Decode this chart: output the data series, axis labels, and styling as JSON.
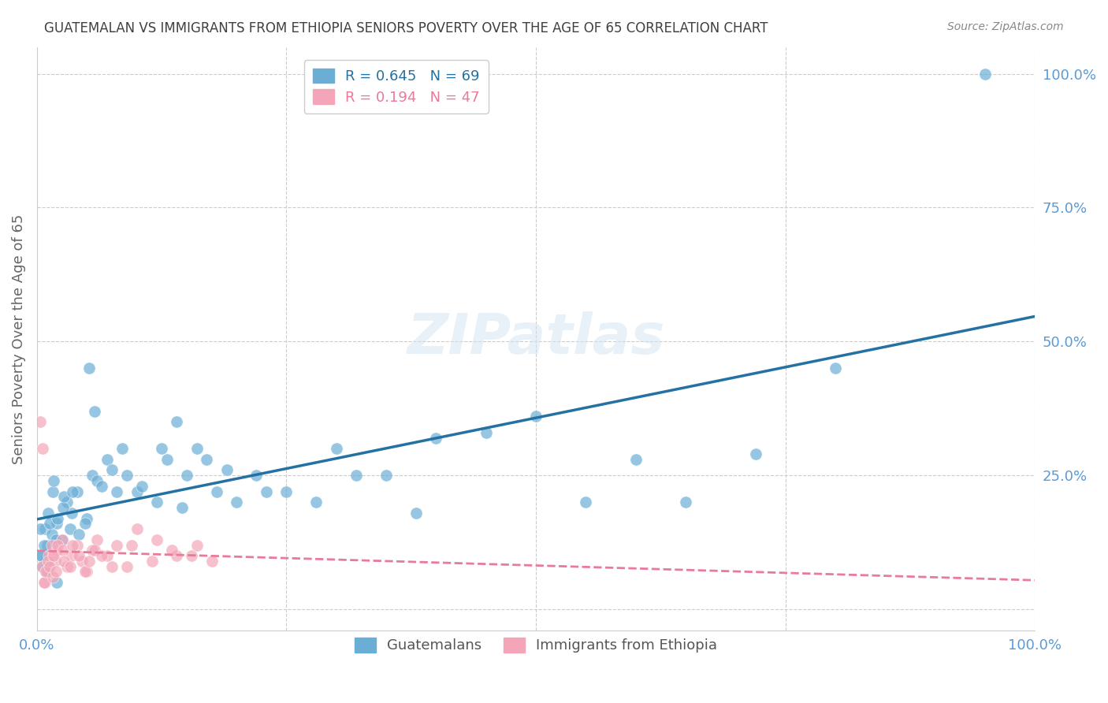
{
  "title": "GUATEMALAN VS IMMIGRANTS FROM ETHIOPIA SENIORS POVERTY OVER THE AGE OF 65 CORRELATION CHART",
  "source": "Source: ZipAtlas.com",
  "xlabel": "",
  "ylabel": "Seniors Poverty Over the Age of 65",
  "watermark": "ZIPatlas",
  "blue_R": 0.645,
  "blue_N": 69,
  "pink_R": 0.194,
  "pink_N": 47,
  "blue_color": "#6aaed6",
  "pink_color": "#f4a6b8",
  "blue_line_color": "#2471a3",
  "pink_line_color": "#e87a9a",
  "axis_label_color": "#5b9bd5",
  "title_color": "#404040",
  "grid_color": "#cccccc",
  "blue_scatter": {
    "x": [
      0.02,
      0.01,
      0.005,
      0.01,
      0.008,
      0.015,
      0.02,
      0.025,
      0.03,
      0.035,
      0.04,
      0.05,
      0.055,
      0.06,
      0.065,
      0.07,
      0.08,
      0.085,
      0.09,
      0.1,
      0.12,
      0.13,
      0.14,
      0.15,
      0.16,
      0.17,
      0.18,
      0.19,
      0.2,
      0.22,
      0.23,
      0.25,
      0.28,
      0.3,
      0.32,
      0.35,
      0.38,
      0.4,
      0.45,
      0.5,
      0.55,
      0.6,
      0.65,
      0.72,
      0.8,
      0.003,
      0.004,
      0.006,
      0.007,
      0.009,
      0.011,
      0.013,
      0.016,
      0.017,
      0.019,
      0.021,
      0.026,
      0.027,
      0.033,
      0.036,
      0.042,
      0.048,
      0.052,
      0.058,
      0.075,
      0.105,
      0.125,
      0.145,
      0.95
    ],
    "y": [
      0.05,
      0.08,
      0.1,
      0.12,
      0.15,
      0.14,
      0.16,
      0.13,
      0.2,
      0.18,
      0.22,
      0.17,
      0.25,
      0.24,
      0.23,
      0.28,
      0.22,
      0.3,
      0.25,
      0.22,
      0.2,
      0.28,
      0.35,
      0.25,
      0.3,
      0.28,
      0.22,
      0.26,
      0.2,
      0.25,
      0.22,
      0.22,
      0.2,
      0.3,
      0.25,
      0.25,
      0.18,
      0.32,
      0.33,
      0.36,
      0.2,
      0.28,
      0.2,
      0.29,
      0.45,
      0.15,
      0.1,
      0.08,
      0.12,
      0.07,
      0.18,
      0.16,
      0.22,
      0.24,
      0.13,
      0.17,
      0.19,
      0.21,
      0.15,
      0.22,
      0.14,
      0.16,
      0.45,
      0.37,
      0.26,
      0.23,
      0.3,
      0.19,
      1.0
    ]
  },
  "pink_scatter": {
    "x": [
      0.005,
      0.008,
      0.01,
      0.012,
      0.015,
      0.018,
      0.02,
      0.025,
      0.03,
      0.035,
      0.04,
      0.045,
      0.05,
      0.055,
      0.06,
      0.07,
      0.08,
      0.09,
      0.1,
      0.12,
      0.14,
      0.16,
      0.003,
      0.006,
      0.007,
      0.009,
      0.011,
      0.013,
      0.016,
      0.017,
      0.019,
      0.021,
      0.026,
      0.027,
      0.033,
      0.036,
      0.042,
      0.048,
      0.052,
      0.058,
      0.065,
      0.075,
      0.095,
      0.115,
      0.135,
      0.155,
      0.175
    ],
    "y": [
      0.08,
      0.05,
      0.07,
      0.1,
      0.12,
      0.09,
      0.11,
      0.13,
      0.08,
      0.1,
      0.12,
      0.09,
      0.07,
      0.11,
      0.13,
      0.1,
      0.12,
      0.08,
      0.15,
      0.13,
      0.1,
      0.12,
      0.35,
      0.3,
      0.05,
      0.07,
      0.09,
      0.08,
      0.06,
      0.1,
      0.07,
      0.12,
      0.11,
      0.09,
      0.08,
      0.12,
      0.1,
      0.07,
      0.09,
      0.11,
      0.1,
      0.08,
      0.12,
      0.09,
      0.11,
      0.1,
      0.09
    ]
  },
  "xlim": [
    0.0,
    1.0
  ],
  "ylim": [
    -0.04,
    1.05
  ],
  "xticks": [
    0.0,
    0.25,
    0.5,
    0.75,
    1.0
  ],
  "xticklabels": [
    "0.0%",
    "",
    "",
    "",
    "100.0%"
  ],
  "yticks": [
    0.0,
    0.25,
    0.5,
    0.75,
    1.0
  ],
  "yticklabels": [
    "",
    "25.0%",
    "50.0%",
    "75.0%",
    "100.0%"
  ],
  "legend_blue_label": "Guatemalans",
  "legend_pink_label": "Immigrants from Ethiopia"
}
